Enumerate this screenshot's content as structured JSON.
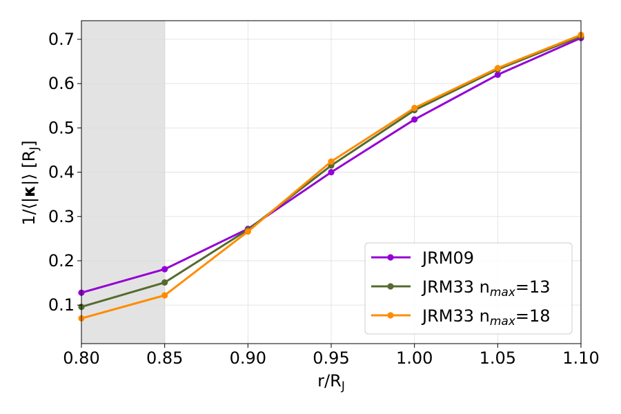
{
  "chart_data": {
    "type": "line",
    "title": "",
    "xlabel": "r/R",
    "xlabel_sub": "J",
    "ylabel_main": "1/⟨|",
    "ylabel_bold": "κ",
    "ylabel_tail": "|⟩ [R",
    "ylabel_sub": "J",
    "ylabel_end": "]",
    "xlim": [
      0.8,
      1.1
    ],
    "ylim": [
      0.013,
      0.742
    ],
    "xticks": [
      0.8,
      0.85,
      0.9,
      0.95,
      1.0,
      1.05,
      1.1
    ],
    "xtick_labels": [
      "0.80",
      "0.85",
      "0.90",
      "0.95",
      "1.00",
      "1.05",
      "1.10"
    ],
    "yticks": [
      0.1,
      0.2,
      0.3,
      0.4,
      0.5,
      0.6,
      0.7
    ],
    "ytick_labels": [
      "0.1",
      "0.2",
      "0.3",
      "0.4",
      "0.5",
      "0.6",
      "0.7"
    ],
    "grid": true,
    "legend_position": "lower-right",
    "shaded_region": {
      "x_start": 0.8,
      "x_end": 0.85,
      "color": "#e3e3e3"
    },
    "x": [
      0.8,
      0.85,
      0.9,
      0.95,
      1.0,
      1.05,
      1.1
    ],
    "series": [
      {
        "name": "JRM09",
        "name_base": "JRM09",
        "name_sub": "",
        "name_tail": "",
        "color": "#9400d3",
        "values": [
          0.128,
          0.181,
          0.272,
          0.4,
          0.519,
          0.62,
          0.703
        ]
      },
      {
        "name": "JRM33 nmax=13",
        "name_base": "JRM33 n",
        "name_sub": "max",
        "name_tail": "=13",
        "color": "#556b2f",
        "values": [
          0.096,
          0.151,
          0.27,
          0.415,
          0.54,
          0.632,
          0.707
        ]
      },
      {
        "name": "JRM33 nmax=18",
        "name_base": "JRM33 n",
        "name_sub": "max",
        "name_tail": "=18",
        "color": "#ff8c00",
        "values": [
          0.07,
          0.122,
          0.266,
          0.424,
          0.545,
          0.635,
          0.71
        ]
      }
    ]
  }
}
